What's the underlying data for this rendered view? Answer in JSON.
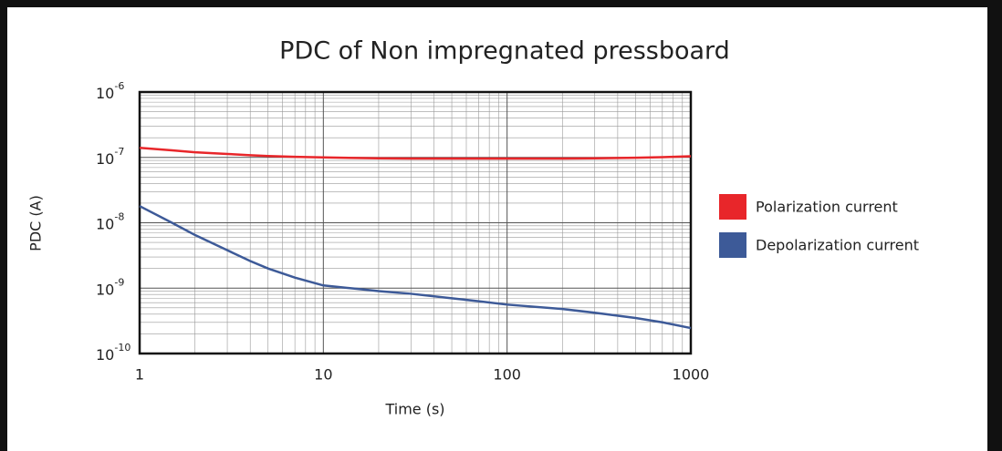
{
  "chart_data": {
    "type": "line",
    "title": "PDC of Non impregnated pressboard",
    "x_label": "Time (s)",
    "y_label": "PDC (A)",
    "x": [
      1,
      1.5,
      2,
      3,
      4,
      5,
      7,
      10,
      15,
      20,
      30,
      50,
      70,
      100,
      200,
      300,
      500,
      700,
      1000
    ],
    "series": [
      {
        "name": "Polarization current",
        "color": "#e8262a",
        "values": [
          1.4e-07,
          1.28e-07,
          1.2e-07,
          1.13e-07,
          1.08e-07,
          1.05e-07,
          1.02e-07,
          1e-07,
          9.8e-08,
          9.7e-08,
          9.6e-08,
          9.6e-08,
          9.6e-08,
          9.6e-08,
          9.6e-08,
          9.7e-08,
          9.9e-08,
          1.01e-07,
          1.04e-07
        ]
      },
      {
        "name": "Depolarization current",
        "color": "#3d5a98",
        "values": [
          1.8e-08,
          1e-08,
          6.5e-09,
          3.8e-09,
          2.6e-09,
          2e-09,
          1.45e-09,
          1.1e-09,
          9.8e-10,
          9e-10,
          8.2e-10,
          7e-10,
          6.3e-10,
          5.6e-10,
          4.8e-10,
          4.2e-10,
          3.5e-10,
          3e-10,
          2.45e-10
        ]
      }
    ],
    "xlim": [
      1,
      1000
    ],
    "ylim": [
      1e-10,
      1e-06
    ],
    "log_x": true,
    "log_y": true,
    "xticks": [
      1,
      10,
      100,
      1000
    ],
    "yticks": [
      {
        "value": 1e-10,
        "label": "10",
        "exponent": "-10"
      },
      {
        "value": 1e-09,
        "label": "10",
        "exponent": "-9"
      },
      {
        "value": 1e-08,
        "label": "10",
        "exponent": "-8"
      },
      {
        "value": 1e-07,
        "label": "10",
        "exponent": "-7"
      },
      {
        "value": 1e-06,
        "label": "10",
        "exponent": "-6"
      }
    ],
    "grid": true,
    "legend": "right"
  }
}
